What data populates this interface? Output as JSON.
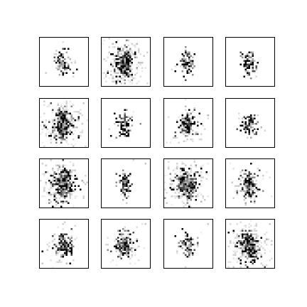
{
  "grid": {
    "rows": 4,
    "cols": 4,
    "panel_count": 16,
    "image_resolution": 28
  },
  "colors": {
    "background": "#ffffff",
    "ink": "#000000",
    "frame": "#000000"
  },
  "panels": [
    {
      "style": "sparse",
      "seed": 11
    },
    {
      "style": "diffuse",
      "seed": 23
    },
    {
      "style": "sparse",
      "seed": 37
    },
    {
      "style": "sparse",
      "seed": 41
    },
    {
      "style": "diffuse",
      "seed": 53
    },
    {
      "style": "sparse",
      "seed": 67
    },
    {
      "style": "medium",
      "seed": 71
    },
    {
      "style": "sparse",
      "seed": 83
    },
    {
      "style": "diffuse",
      "seed": 97
    },
    {
      "style": "sparse",
      "seed": 101
    },
    {
      "style": "diffuse",
      "seed": 113
    },
    {
      "style": "medium",
      "seed": 127
    },
    {
      "style": "medium",
      "seed": 131
    },
    {
      "style": "medium",
      "seed": 149
    },
    {
      "style": "sparse",
      "seed": 151
    },
    {
      "style": "diffuse",
      "seed": 163
    }
  ]
}
